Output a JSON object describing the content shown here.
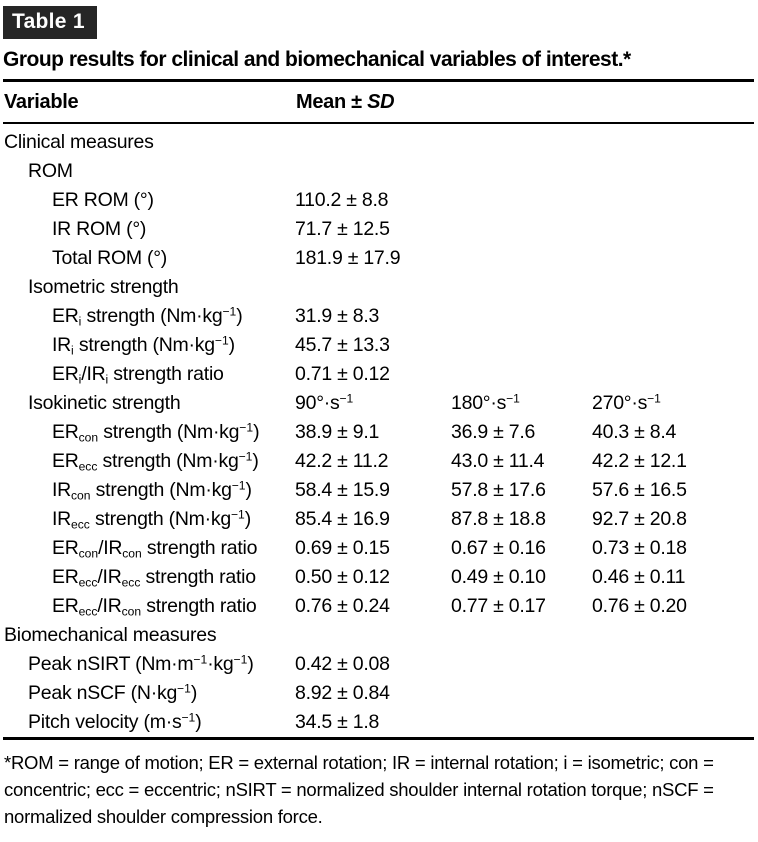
{
  "page": {
    "tag": "Table 1",
    "title": "Group results for clinical and biomechanical variables of interest.*"
  },
  "header": {
    "variable": [
      {
        "t": "Variable"
      }
    ],
    "mean_sd": [
      {
        "t": "Mean ± "
      },
      {
        "v": "i",
        "t": "SD"
      }
    ]
  },
  "table": {
    "rows": [
      {
        "indent": 0,
        "label": [
          {
            "t": "Clinical measures"
          }
        ],
        "values": []
      },
      {
        "indent": 1,
        "label": [
          {
            "t": "ROM"
          }
        ],
        "values": []
      },
      {
        "indent": 2,
        "label": [
          {
            "t": "ER ROM (°)"
          }
        ],
        "values": [
          [
            {
              "t": "110.2 ± 8.8"
            }
          ]
        ]
      },
      {
        "indent": 2,
        "label": [
          {
            "t": "IR ROM (°)"
          }
        ],
        "values": [
          [
            {
              "t": "71.7 ± 12.5"
            }
          ]
        ]
      },
      {
        "indent": 2,
        "label": [
          {
            "t": "Total ROM (°)"
          }
        ],
        "values": [
          [
            {
              "t": "181.9 ± 17.9"
            }
          ]
        ]
      },
      {
        "indent": 1,
        "label": [
          {
            "t": "Isometric strength"
          }
        ],
        "values": []
      },
      {
        "indent": 2,
        "label": [
          {
            "t": "ER"
          },
          {
            "v": "sub",
            "t": "i"
          },
          {
            "t": " strength (Nm·kg"
          },
          {
            "v": "sup",
            "t": "−1"
          },
          {
            "t": ")"
          }
        ],
        "values": [
          [
            {
              "t": "31.9 ± 8.3"
            }
          ]
        ]
      },
      {
        "indent": 2,
        "label": [
          {
            "t": "IR"
          },
          {
            "v": "sub",
            "t": "i"
          },
          {
            "t": " strength (Nm·kg"
          },
          {
            "v": "sup",
            "t": "−1"
          },
          {
            "t": ")"
          }
        ],
        "values": [
          [
            {
              "t": "45.7 ± 13.3"
            }
          ]
        ]
      },
      {
        "indent": 2,
        "label": [
          {
            "t": "ER"
          },
          {
            "v": "sub",
            "t": "i"
          },
          {
            "t": "/IR"
          },
          {
            "v": "sub",
            "t": "i"
          },
          {
            "t": " strength ratio"
          }
        ],
        "values": [
          [
            {
              "t": "0.71 ± 0.12"
            }
          ]
        ]
      },
      {
        "indent": 1,
        "label": [
          {
            "t": "Isokinetic strength"
          }
        ],
        "values": [
          [
            {
              "t": "90°·s"
            },
            {
              "v": "sup",
              "t": "−1"
            }
          ],
          [
            {
              "t": "180°·s"
            },
            {
              "v": "sup",
              "t": "−1"
            }
          ],
          [
            {
              "t": "270°·s"
            },
            {
              "v": "sup",
              "t": "−1"
            }
          ]
        ]
      },
      {
        "indent": 2,
        "label": [
          {
            "t": "ER"
          },
          {
            "v": "sub",
            "t": "con"
          },
          {
            "t": " strength (Nm·kg"
          },
          {
            "v": "sup",
            "t": "−1"
          },
          {
            "t": ")"
          }
        ],
        "values": [
          [
            {
              "t": "38.9 ± 9.1"
            }
          ],
          [
            {
              "t": "36.9 ± 7.6"
            }
          ],
          [
            {
              "t": "40.3 ± 8.4"
            }
          ]
        ]
      },
      {
        "indent": 2,
        "label": [
          {
            "t": "ER"
          },
          {
            "v": "sub",
            "t": "ecc"
          },
          {
            "t": " strength (Nm·kg"
          },
          {
            "v": "sup",
            "t": "−1"
          },
          {
            "t": ")"
          }
        ],
        "values": [
          [
            {
              "t": "42.2 ± 11.2"
            }
          ],
          [
            {
              "t": "43.0 ± 11.4"
            }
          ],
          [
            {
              "t": "42.2 ± 12.1"
            }
          ]
        ]
      },
      {
        "indent": 2,
        "label": [
          {
            "t": "IR"
          },
          {
            "v": "sub",
            "t": "con"
          },
          {
            "t": " strength (Nm·kg"
          },
          {
            "v": "sup",
            "t": "−1"
          },
          {
            "t": ")"
          }
        ],
        "values": [
          [
            {
              "t": "58.4 ± 15.9"
            }
          ],
          [
            {
              "t": "57.8 ± 17.6"
            }
          ],
          [
            {
              "t": "57.6 ± 16.5"
            }
          ]
        ]
      },
      {
        "indent": 2,
        "label": [
          {
            "t": "IR"
          },
          {
            "v": "sub",
            "t": "ecc"
          },
          {
            "t": " strength (Nm·kg"
          },
          {
            "v": "sup",
            "t": "−1"
          },
          {
            "t": ")"
          }
        ],
        "values": [
          [
            {
              "t": "85.4 ± 16.9"
            }
          ],
          [
            {
              "t": "87.8 ± 18.8"
            }
          ],
          [
            {
              "t": "92.7 ± 20.8"
            }
          ]
        ]
      },
      {
        "indent": 2,
        "label": [
          {
            "t": "ER"
          },
          {
            "v": "sub",
            "t": "con"
          },
          {
            "t": "/IR"
          },
          {
            "v": "sub",
            "t": "con"
          },
          {
            "t": " strength ratio"
          }
        ],
        "values": [
          [
            {
              "t": "0.69 ± 0.15"
            }
          ],
          [
            {
              "t": "0.67 ± 0.16"
            }
          ],
          [
            {
              "t": "0.73 ± 0.18"
            }
          ]
        ]
      },
      {
        "indent": 2,
        "label": [
          {
            "t": "ER"
          },
          {
            "v": "sub",
            "t": "ecc"
          },
          {
            "t": "/IR"
          },
          {
            "v": "sub",
            "t": "ecc"
          },
          {
            "t": " strength ratio"
          }
        ],
        "values": [
          [
            {
              "t": "0.50 ± 0.12"
            }
          ],
          [
            {
              "t": "0.49 ± 0.10"
            }
          ],
          [
            {
              "t": "0.46 ± 0.11"
            }
          ]
        ]
      },
      {
        "indent": 2,
        "label": [
          {
            "t": "ER"
          },
          {
            "v": "sub",
            "t": "ecc"
          },
          {
            "t": "/IR"
          },
          {
            "v": "sub",
            "t": "con"
          },
          {
            "t": " strength ratio"
          }
        ],
        "values": [
          [
            {
              "t": "0.76 ± 0.24"
            }
          ],
          [
            {
              "t": "0.77 ± 0.17"
            }
          ],
          [
            {
              "t": "0.76 ± 0.20"
            }
          ]
        ]
      },
      {
        "indent": 0,
        "label": [
          {
            "t": "Biomechanical measures"
          }
        ],
        "values": []
      },
      {
        "indent": 1,
        "label": [
          {
            "t": "Peak nSIRT (Nm·m"
          },
          {
            "v": "sup",
            "t": "−1"
          },
          {
            "t": "·kg"
          },
          {
            "v": "sup",
            "t": "−1"
          },
          {
            "t": ")"
          }
        ],
        "values": [
          [
            {
              "t": "0.42 ± 0.08"
            }
          ]
        ]
      },
      {
        "indent": 1,
        "label": [
          {
            "t": "Peak nSCF (N·kg"
          },
          {
            "v": "sup",
            "t": "−1"
          },
          {
            "t": ")"
          }
        ],
        "values": [
          [
            {
              "t": "8.92 ± 0.84"
            }
          ]
        ]
      },
      {
        "indent": 1,
        "label": [
          {
            "t": "Pitch velocity (m·s"
          },
          {
            "v": "sup",
            "t": "−1"
          },
          {
            "t": ")"
          }
        ],
        "values": [
          [
            {
              "t": "34.5 ± 1.8"
            }
          ]
        ]
      }
    ]
  },
  "footnote": "*ROM = range of motion; ER = external rotation; IR = internal rotation; i = isometric; con = concentric; ecc = eccentric; nSIRT = normalized shoulder internal rotation torque; nSCF = normalized shoulder compression force.",
  "colors": {
    "tag_background": "#262626",
    "tag_text": "#ffffff",
    "text": "#000000",
    "background": "#ffffff"
  }
}
